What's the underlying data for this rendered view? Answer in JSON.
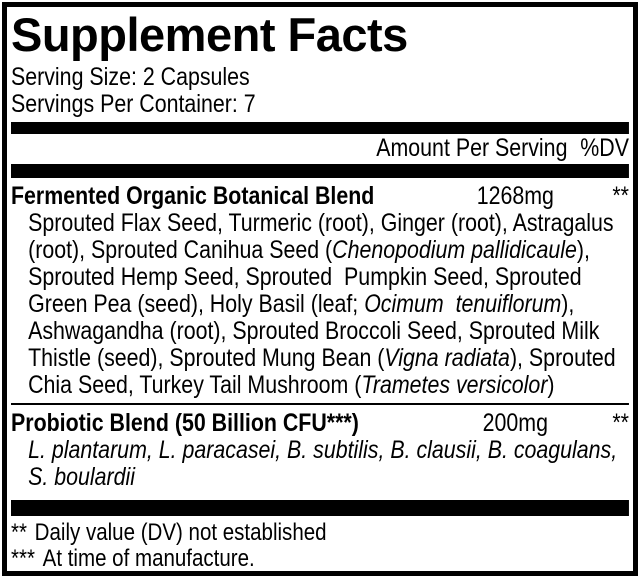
{
  "label": {
    "title": "Supplement Facts",
    "serving_size": "Serving Size: 2 Capsules",
    "servings_per_container": "Servings Per Container: 7",
    "columns": {
      "amount": "Amount Per Serving",
      "dv": "%DV"
    },
    "rows": [
      {
        "name": "Fermented Organic Botanical Blend",
        "amount": "1268mg",
        "dv": "**",
        "description": [
          {
            "t": "Sprouted Flax Seed, Turmeric (root), Ginger (root), Astragalus (root), Sprouted Canihua Seed ("
          },
          {
            "t": "Chenopodium pallidicaule",
            "i": true
          },
          {
            "t": "), Sprouted Hemp Seed, Sprouted  Pumpkin Seed, Sprouted Green Pea (seed), Holy Basil (leaf; "
          },
          {
            "t": "Ocimum  tenuiflorum",
            "i": true
          },
          {
            "t": "), Ashwagandha (root), Sprouted Broccoli Seed, Sprouted Milk Thistle (seed), Sprouted Mung Bean ("
          },
          {
            "t": "Vigna radiata",
            "i": true
          },
          {
            "t": "), Sprouted Chia Seed, Turkey Tail Mushroom ("
          },
          {
            "t": "Trametes versicolor",
            "i": true
          },
          {
            "t": ")"
          }
        ]
      },
      {
        "name": "Probiotic Blend (50 Billion CFU***)",
        "amount": "200mg",
        "dv": "**",
        "description": [
          {
            "t": "L. plantarum, L. paracasei, B. subtilis, B. clausii, B. coagulans, S. boulardii",
            "i": true
          }
        ]
      }
    ],
    "footnotes": [
      {
        "marker": "**",
        "text": "Daily value (DV) not established"
      },
      {
        "marker": "***",
        "text": "At time of manufacture."
      }
    ],
    "colors": {
      "ink": "#000000",
      "paper": "#ffffff"
    }
  }
}
